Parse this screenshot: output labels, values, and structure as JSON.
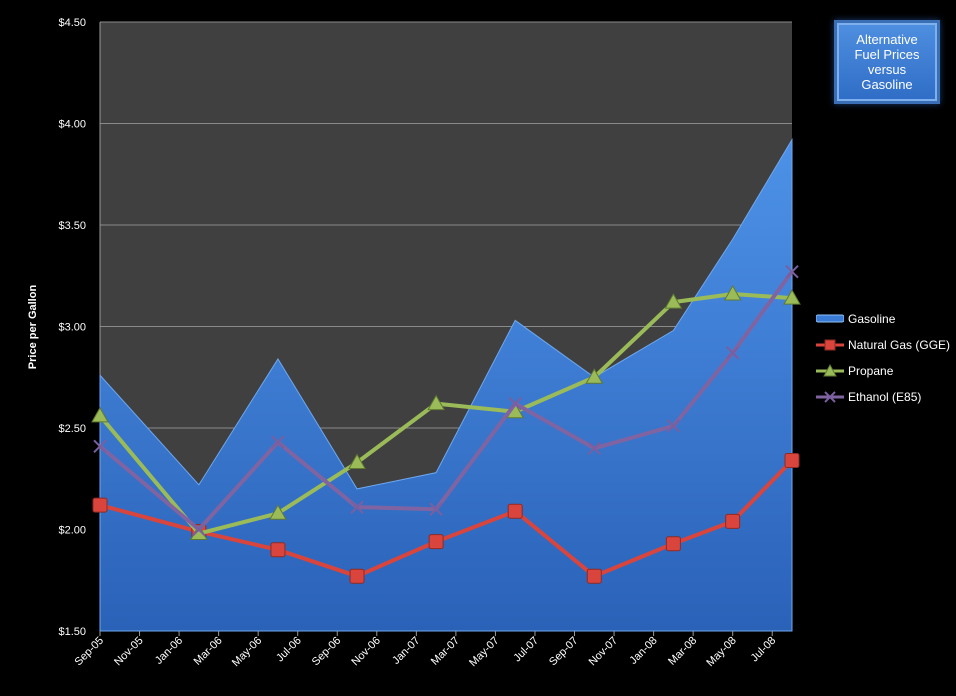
{
  "chart_data": {
    "type": "line",
    "title": "Alternative Fuel Prices versus Gasoline",
    "ylabel": "Price per Gallon",
    "xlabel": "",
    "ylim": [
      1.5,
      4.5
    ],
    "yticks": [
      "$1.50",
      "$2.00",
      "$2.50",
      "$3.00",
      "$3.50",
      "$4.00",
      "$4.50"
    ],
    "xticks": [
      "Sep-05",
      "Nov-05",
      "Jan-06",
      "Mar-06",
      "May-06",
      "Jul-06",
      "Sep-06",
      "Nov-06",
      "Jan-07",
      "Mar-07",
      "May-07",
      "Jul-07",
      "Sep-07",
      "Nov-07",
      "Jan-08",
      "Mar-08",
      "May-08",
      "Jul-08"
    ],
    "grid": true,
    "legend": "right",
    "series": [
      {
        "name": "Gasoline",
        "style": "area",
        "color": "#3a7bd5",
        "points": [
          [
            "Sep-05",
            2.76
          ],
          [
            "Feb-06",
            2.22
          ],
          [
            "Jun-06",
            2.84
          ],
          [
            "Oct-06",
            2.2
          ],
          [
            "Feb-07",
            2.28
          ],
          [
            "Jun-07",
            3.03
          ],
          [
            "Oct-07",
            2.75
          ],
          [
            "Feb-08",
            2.98
          ],
          [
            "May-08",
            3.43
          ],
          [
            "Aug-08",
            3.92
          ]
        ]
      },
      {
        "name": "Natural Gas (GGE)",
        "style": "line",
        "color": "#d9453c",
        "marker": "square",
        "points": [
          [
            "Sep-05",
            2.12
          ],
          [
            "Feb-06",
            1.99
          ],
          [
            "Jun-06",
            1.9
          ],
          [
            "Oct-06",
            1.77
          ],
          [
            "Feb-07",
            1.94
          ],
          [
            "Jun-07",
            2.09
          ],
          [
            "Oct-07",
            1.77
          ],
          [
            "Feb-08",
            1.93
          ],
          [
            "May-08",
            2.04
          ],
          [
            "Aug-08",
            2.34
          ]
        ]
      },
      {
        "name": "Propane",
        "style": "line",
        "color": "#9bbb59",
        "marker": "triangle",
        "points": [
          [
            "Sep-05",
            2.56
          ],
          [
            "Feb-06",
            1.98
          ],
          [
            "Jun-06",
            2.08
          ],
          [
            "Oct-06",
            2.33
          ],
          [
            "Feb-07",
            2.62
          ],
          [
            "Jun-07",
            2.58
          ],
          [
            "Oct-07",
            2.75
          ],
          [
            "Feb-08",
            3.12
          ],
          [
            "May-08",
            3.16
          ],
          [
            "Aug-08",
            3.14
          ]
        ]
      },
      {
        "name": "Ethanol (E85)",
        "style": "line",
        "color": "#8064a2",
        "marker": "x",
        "points": [
          [
            "Sep-05",
            2.41
          ],
          [
            "Feb-06",
            2.0
          ],
          [
            "Jun-06",
            2.43
          ],
          [
            "Oct-06",
            2.11
          ],
          [
            "Feb-07",
            2.1
          ],
          [
            "Jun-07",
            2.62
          ],
          [
            "Oct-07",
            2.4
          ],
          [
            "Feb-08",
            2.51
          ],
          [
            "May-08",
            2.87
          ],
          [
            "Aug-08",
            3.27
          ]
        ]
      }
    ]
  }
}
